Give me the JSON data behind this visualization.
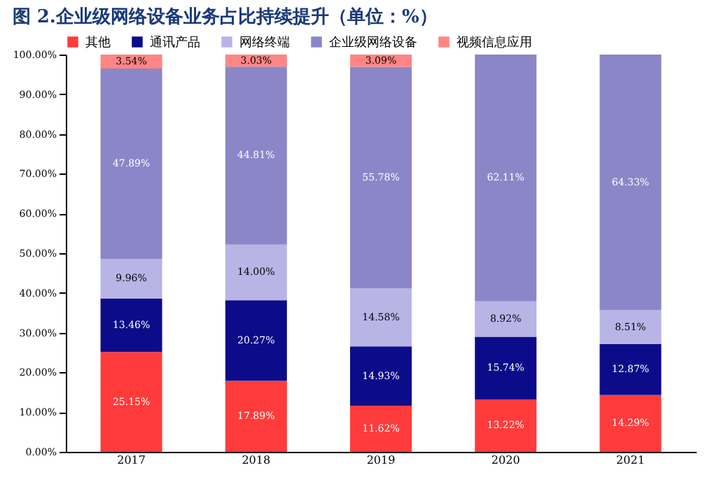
{
  "chart_data": {
    "type": "bar",
    "stacked": true,
    "title": "图 2.企业级网络设备业务占比持续提升（单位：%）",
    "categories": [
      "2017",
      "2018",
      "2019",
      "2020",
      "2021"
    ],
    "series": [
      {
        "name": "其他",
        "color": "#ff3b3b",
        "values": [
          25.15,
          17.89,
          11.62,
          13.22,
          14.29
        ],
        "value_labels": [
          "25.15%",
          "17.89%",
          "11.62%",
          "13.22%",
          "14.29%"
        ]
      },
      {
        "name": "通讯产品",
        "color": "#0c0c8a",
        "values": [
          13.46,
          20.27,
          14.93,
          15.74,
          12.87
        ],
        "value_labels": [
          "13.46%",
          "20.27%",
          "14.93%",
          "15.74%",
          "12.87%"
        ]
      },
      {
        "name": "网络终端",
        "color": "#b8b4e6",
        "values": [
          9.96,
          14.0,
          14.58,
          8.92,
          8.51
        ],
        "value_labels": [
          "9.96%",
          "14.00%",
          "14.58%",
          "8.92%",
          "8.51%"
        ]
      },
      {
        "name": "企业级网络设备",
        "color": "#8b86c8",
        "values": [
          47.89,
          44.81,
          55.78,
          62.11,
          64.33
        ],
        "value_labels": [
          "47.89%",
          "44.81%",
          "55.78%",
          "62.11%",
          "64.33%"
        ]
      },
      {
        "name": "视频信息应用",
        "color": "#ff8585",
        "values": [
          3.54,
          3.03,
          3.09,
          null,
          null
        ],
        "value_labels": [
          "3.54%",
          "3.03%",
          "3.09%",
          null,
          null
        ]
      }
    ],
    "ylim": [
      0,
      100
    ],
    "yticks": [
      {
        "value": 0,
        "label": "0.00%"
      },
      {
        "value": 10,
        "label": "10.00%"
      },
      {
        "value": 20,
        "label": "20.00%"
      },
      {
        "value": 30,
        "label": "30.00%"
      },
      {
        "value": 40,
        "label": "40.00%"
      },
      {
        "value": 50,
        "label": "50.00%"
      },
      {
        "value": 60,
        "label": "60.00%"
      },
      {
        "value": 70,
        "label": "70.00%"
      },
      {
        "value": 80,
        "label": "80.00%"
      },
      {
        "value": 90,
        "label": "90.00%"
      },
      {
        "value": 100,
        "label": "100.00%"
      }
    ],
    "legend": "top",
    "grid": false
  }
}
